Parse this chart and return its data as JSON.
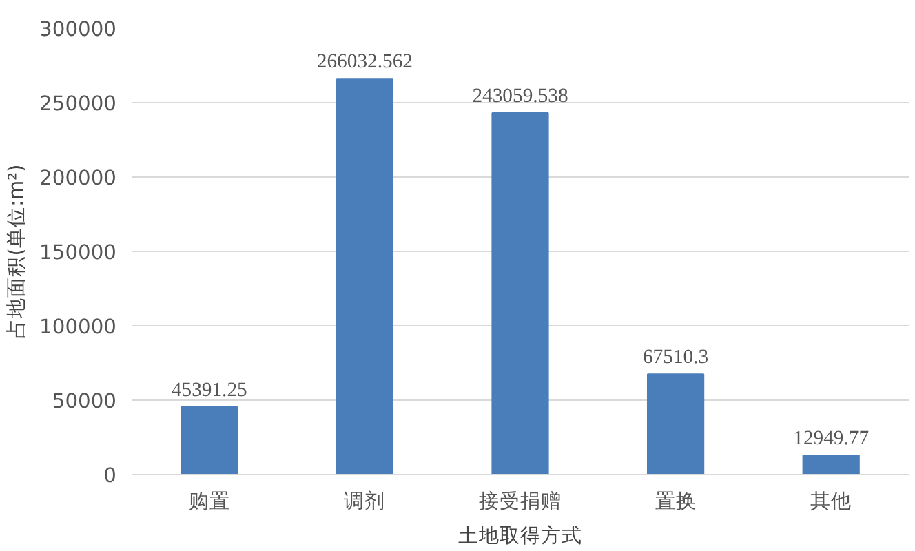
{
  "chart_data": {
    "type": "bar",
    "xlabel": "土地取得方式",
    "ylabel": "占地面积(单位:m²)",
    "categories": [
      "购置",
      "调剂",
      "接受捐赠",
      "置换",
      "其他"
    ],
    "values": [
      45391.25,
      266032.562,
      243059.538,
      67510.3,
      12949.77
    ],
    "value_labels": [
      "45391.25",
      "266032.562",
      "243059.538",
      "67510.3",
      "12949.77"
    ],
    "color": "#4a7ebb",
    "ylim": [
      0,
      300000
    ],
    "yticks": [
      0,
      50000,
      100000,
      150000,
      200000,
      250000,
      300000
    ],
    "grid": "y"
  }
}
